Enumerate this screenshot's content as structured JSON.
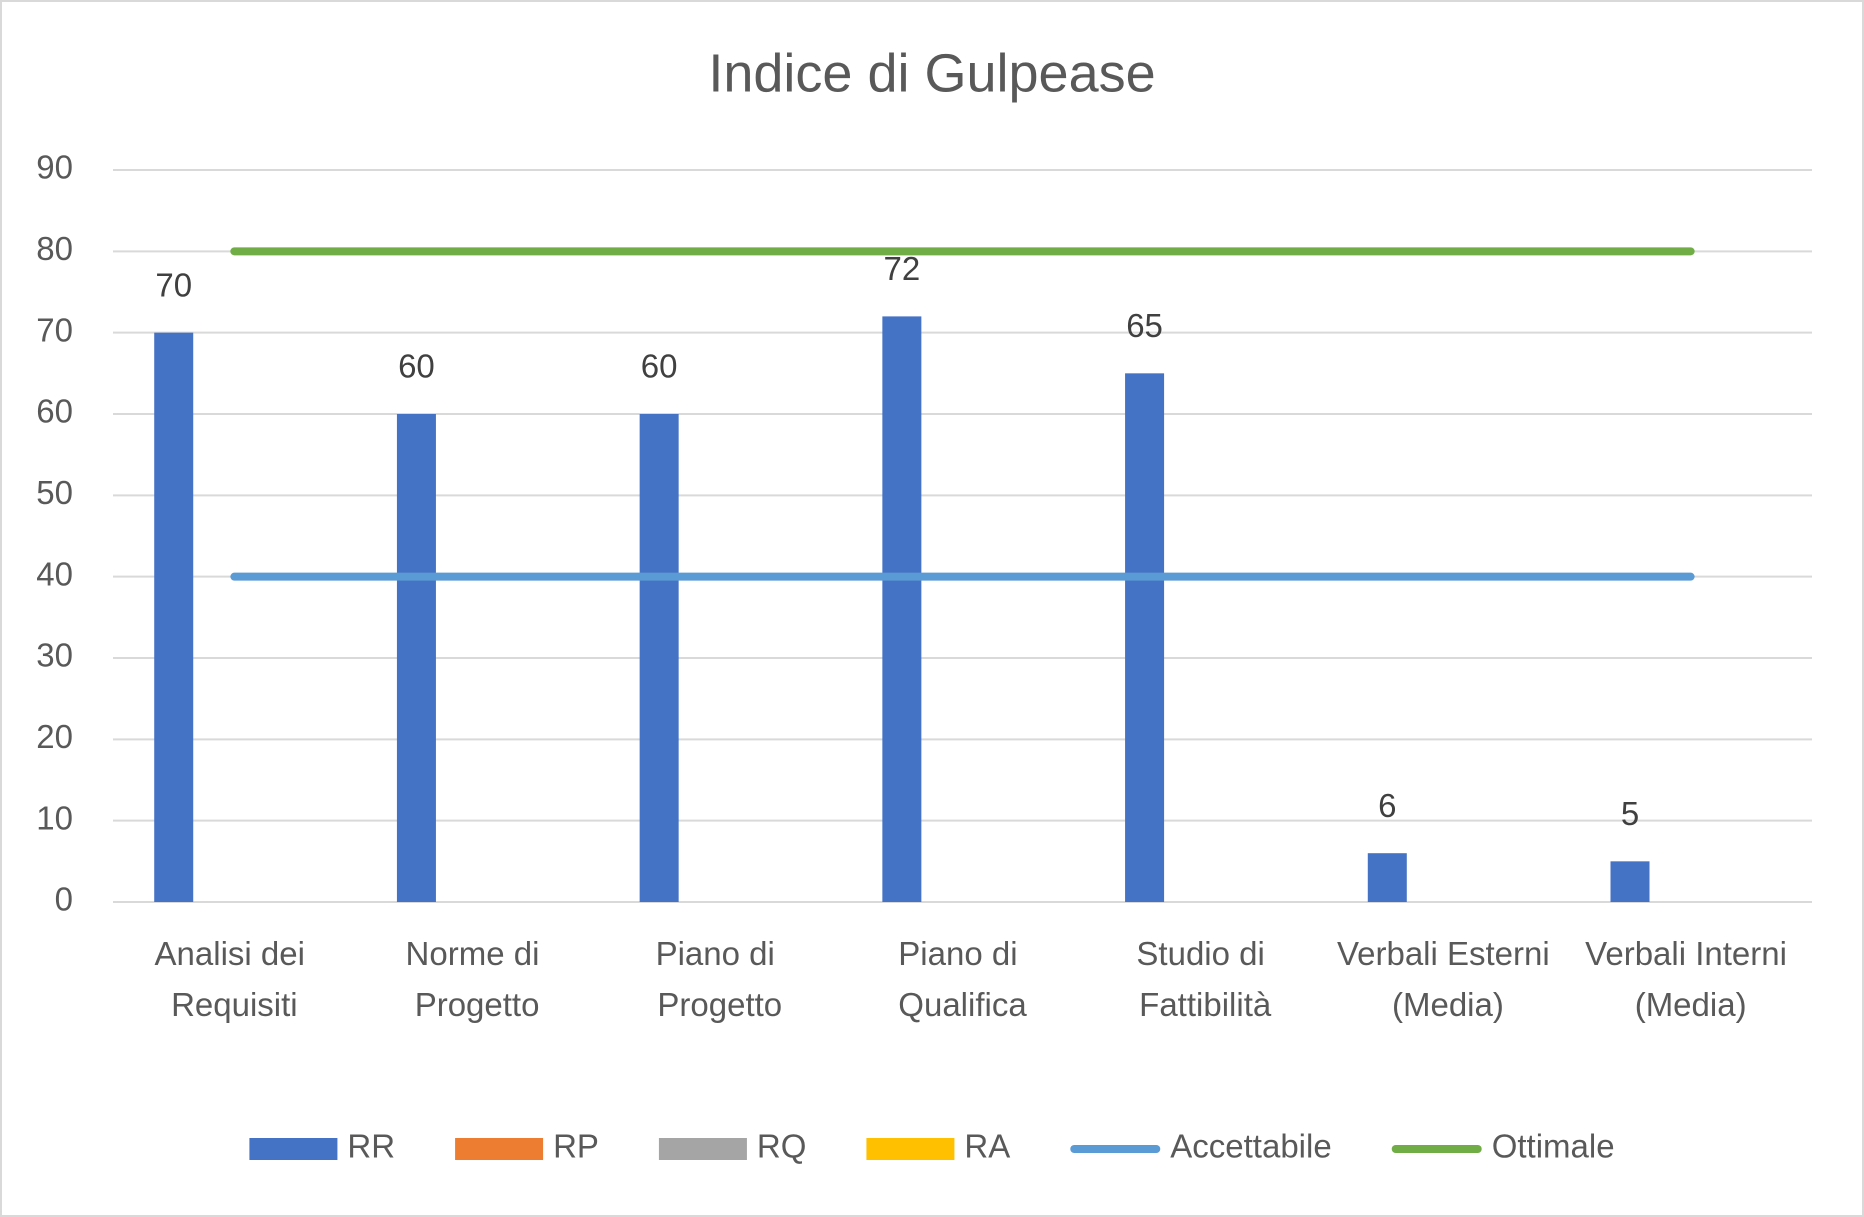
{
  "chart_data": {
    "type": "bar",
    "title": "Indice di Gulpease",
    "categories": [
      "Analisi dei Requisiti",
      "Norme di Progetto",
      "Piano di Progetto",
      "Piano di Qualifica",
      "Studio di Fattibilità",
      "Verbali Esterni (Media)",
      "Verbali Interni (Media)"
    ],
    "series": [
      {
        "name": "RR",
        "type": "bar",
        "color": "#4472c4",
        "values": [
          70,
          60,
          60,
          72,
          65,
          6,
          5
        ],
        "data_labels": true
      },
      {
        "name": "RP",
        "type": "bar",
        "color": "#ed7d31",
        "values": [
          null,
          null,
          null,
          null,
          null,
          null,
          null
        ]
      },
      {
        "name": "RQ",
        "type": "bar",
        "color": "#a5a5a5",
        "values": [
          null,
          null,
          null,
          null,
          null,
          null,
          null
        ]
      },
      {
        "name": "RA",
        "type": "bar",
        "color": "#ffc000",
        "values": [
          null,
          null,
          null,
          null,
          null,
          null,
          null
        ]
      },
      {
        "name": "Accettabile",
        "type": "line",
        "color": "#5b9bd5",
        "values": [
          40,
          40,
          40,
          40,
          40,
          40,
          40
        ]
      },
      {
        "name": "Ottimale",
        "type": "line",
        "color": "#70ad47",
        "values": [
          80,
          80,
          80,
          80,
          80,
          80,
          80
        ]
      }
    ],
    "ylim": [
      0,
      90
    ],
    "yticks": [
      0,
      10,
      20,
      30,
      40,
      50,
      60,
      70,
      80,
      90
    ],
    "grid": true,
    "legend": "bottom"
  }
}
